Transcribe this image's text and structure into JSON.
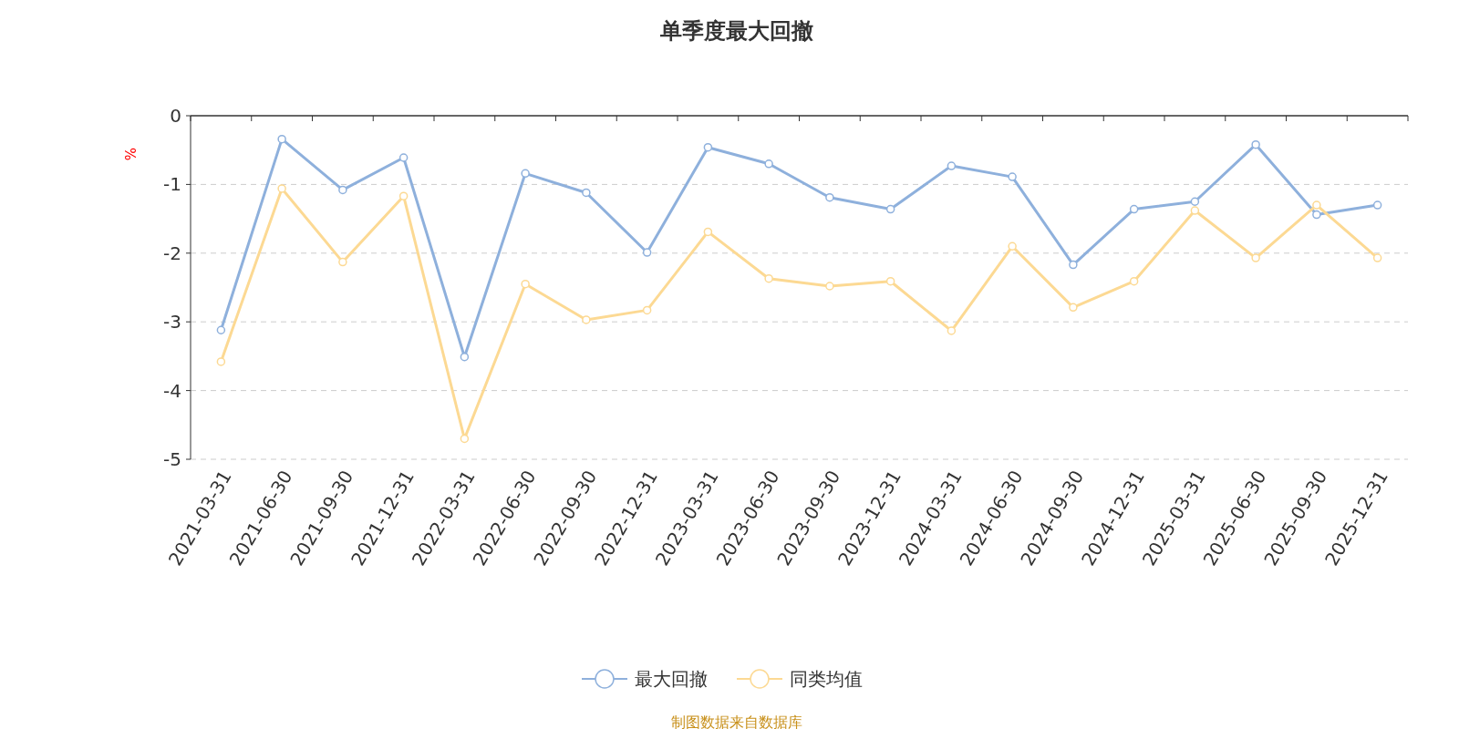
{
  "chart_data": {
    "type": "line",
    "title": "单季度最大回撤",
    "ylabel": "%",
    "categories": [
      "2021-03-31",
      "2021-06-30",
      "2021-09-30",
      "2021-12-31",
      "2022-03-31",
      "2022-06-30",
      "2022-09-30",
      "2022-12-31",
      "2023-03-31",
      "2023-06-30",
      "2023-09-30",
      "2023-12-31",
      "2024-03-31",
      "2024-06-30",
      "2024-09-30",
      "2024-12-31",
      "2025-03-31",
      "2025-06-30",
      "2025-09-30",
      "2025-12-31"
    ],
    "series": [
      {
        "name": "最大回撤",
        "color": "#8eb0dc",
        "values": [
          -3.12,
          -0.34,
          -1.08,
          -0.61,
          -3.51,
          -0.84,
          -1.12,
          -1.99,
          -0.46,
          -0.7,
          -1.19,
          -1.36,
          -0.73,
          -0.89,
          -2.17,
          -1.36,
          -1.25,
          -0.42,
          -1.44,
          -1.3
        ]
      },
      {
        "name": "同类均值",
        "color": "#fcd993",
        "values": [
          -3.58,
          -1.06,
          -2.13,
          -1.17,
          -4.7,
          -2.45,
          -2.97,
          -2.83,
          -1.69,
          -2.37,
          -2.48,
          -2.41,
          -3.13,
          -1.9,
          -2.79,
          -2.41,
          -1.38,
          -2.07,
          -1.3,
          -2.07
        ]
      }
    ],
    "ylim": [
      -5,
      0
    ],
    "yticks": [
      0,
      -1,
      -2,
      -3,
      -4,
      -5
    ],
    "grid": "y",
    "legend": "bottom",
    "marker": "circle",
    "line_style": "solid",
    "annotations": [
      "制图数据来自数据库"
    ]
  }
}
